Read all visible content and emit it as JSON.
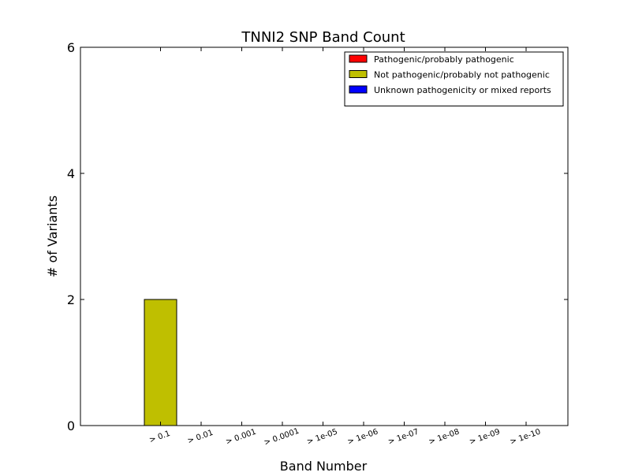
{
  "chart_data": {
    "type": "bar",
    "title": "TNNI2 SNP Band Count",
    "xlabel": "Band Number",
    "ylabel": "# of Variants",
    "categories": [
      "> 0.1",
      "> 0.01",
      "> 0.001",
      "> 0.0001",
      "> 1e-05",
      "> 1e-06",
      "> 1e-07",
      "> 1e-08",
      "> 1e-09",
      "> 1e-10"
    ],
    "series": [
      {
        "name": "Pathogenic/probably pathogenic",
        "color": "#ff0000",
        "values": [
          0,
          0,
          0,
          0,
          0,
          0,
          0,
          0,
          0,
          0
        ]
      },
      {
        "name": "Not pathogenic/probably not pathogenic",
        "color": "#bfbf00",
        "values": [
          2,
          0,
          0,
          0,
          0,
          0,
          0,
          0,
          0,
          0
        ]
      },
      {
        "name": "Unknown pathogenicity or mixed reports",
        "color": "#0000ff",
        "values": [
          0,
          0,
          0,
          0,
          0,
          0,
          0,
          0,
          0,
          0
        ]
      }
    ],
    "ylim": [
      0,
      6
    ],
    "yticks": [
      0,
      2,
      4,
      6
    ],
    "stacked": true,
    "grid": false,
    "legend_position": "top-right"
  }
}
